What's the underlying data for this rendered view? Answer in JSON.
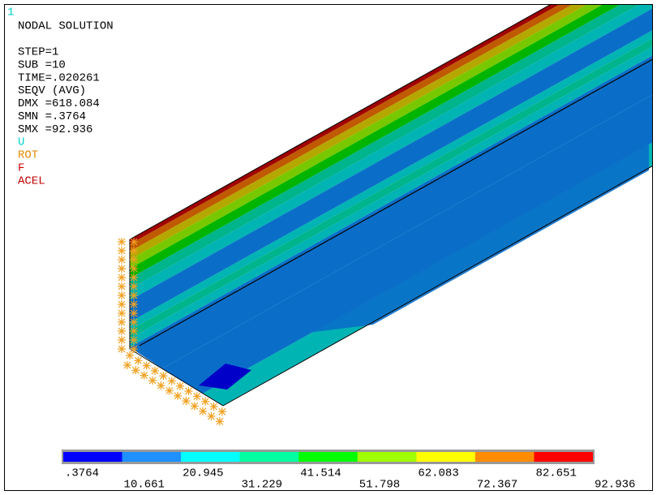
{
  "window_number": "1",
  "info_lines": [
    "NODAL SOLUTION",
    "",
    "STEP=1",
    "SUB =10",
    "TIME=.020261",
    "SEQV     (AVG)",
    "DMX =618.084",
    "SMN =.3764",
    "SMX =92.936"
  ],
  "boundary_labels": [
    {
      "text": "U",
      "color": "#00d0d0"
    },
    {
      "text": "ROT",
      "color": "#e08a00"
    },
    {
      "text": "F",
      "color": "#d00000"
    },
    {
      "text": "ACEL",
      "color": "#c00000"
    }
  ],
  "legend": {
    "colors": [
      "#0000ff",
      "#1e90ff",
      "#00ffff",
      "#00ffa0",
      "#00ff00",
      "#a0ff00",
      "#ffff00",
      "#ff8c00",
      "#ff0000"
    ],
    "labels": [
      ".3764",
      "10.661",
      "20.945",
      "31.229",
      "41.514",
      "51.798",
      "62.083",
      "72.367",
      "82.651",
      "92.936"
    ]
  }
}
